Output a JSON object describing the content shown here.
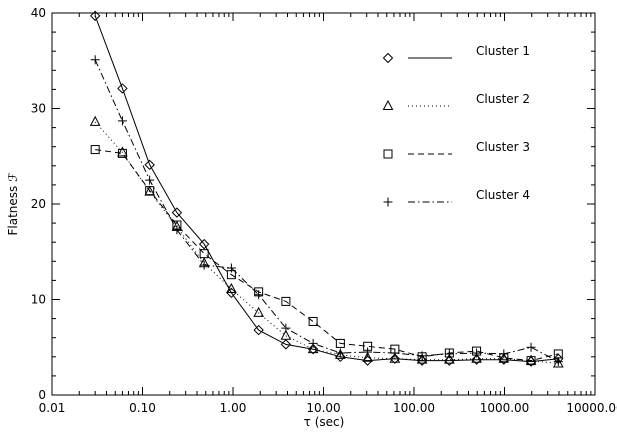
{
  "chart_data": {
    "type": "line",
    "xscale": "log",
    "xlabel": "τ (sec)",
    "ylabel": "Flatness ℱ",
    "xlim": [
      0.01,
      10000
    ],
    "ylim": [
      0,
      40
    ],
    "x_ticks": [
      0.01,
      0.1,
      1,
      10,
      100,
      1000,
      10000
    ],
    "x_tick_labels": [
      "0.01",
      "0.10",
      "1.00",
      "10.00",
      "100.00",
      "1000.00",
      "10000.00"
    ],
    "y_ticks": [
      0,
      10,
      20,
      30,
      40
    ],
    "y_tick_labels": [
      "0",
      "10",
      "20",
      "30",
      "40"
    ],
    "x": [
      0.03,
      0.06,
      0.12,
      0.24,
      0.48,
      0.96,
      1.92,
      3.84,
      7.68,
      15.36,
      30.72,
      61.44,
      122.88,
      245.76,
      491.52,
      983.04,
      1966.08,
      3932.16
    ],
    "legend_position": "top-right",
    "grid": false,
    "series": [
      {
        "name": "Cluster 1",
        "marker": "diamond",
        "dash": "solid",
        "values": [
          39.7,
          32.1,
          24.1,
          19.1,
          15.8,
          10.7,
          6.8,
          5.3,
          4.8,
          4.0,
          3.6,
          3.8,
          3.6,
          3.6,
          3.7,
          3.7,
          3.5,
          3.8
        ]
      },
      {
        "name": "Cluster 2",
        "marker": "triangle",
        "dash": "dotted",
        "values": [
          28.6,
          25.4,
          21.3,
          17.6,
          13.8,
          11.1,
          8.6,
          6.2,
          4.8,
          4.2,
          3.9,
          3.8,
          3.7,
          3.7,
          3.8,
          3.8,
          3.6,
          3.3
        ]
      },
      {
        "name": "Cluster 3",
        "marker": "square",
        "dash": "dashed",
        "values": [
          25.7,
          25.3,
          21.4,
          17.8,
          14.8,
          12.6,
          10.8,
          9.8,
          7.7,
          5.4,
          5.1,
          4.8,
          4.0,
          4.4,
          4.6,
          3.9,
          3.6,
          4.3
        ]
      },
      {
        "name": "Cluster 4",
        "marker": "plus",
        "dash": "dashdot",
        "values": [
          35.1,
          28.7,
          22.5,
          17.3,
          13.6,
          13.3,
          10.5,
          7.0,
          5.4,
          4.4,
          4.5,
          4.4,
          4.1,
          4.3,
          4.4,
          4.3,
          5.0,
          3.5
        ]
      }
    ]
  }
}
